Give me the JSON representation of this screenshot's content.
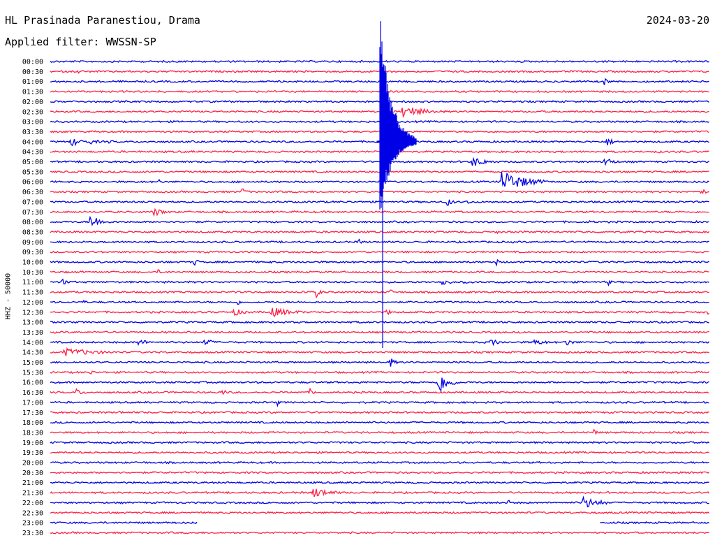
{
  "header": {
    "station": "HL Prasinada Paranestiou, Drama",
    "date": "2024-03-20",
    "filter": "Applied filter: WWSSN-SP",
    "channel": "HHZ - 50000"
  },
  "colors": {
    "trace_a": "#0000e6",
    "trace_b": "#ff1e46",
    "text": "#000000",
    "background": "#ffffff"
  },
  "chart_data": {
    "type": "line",
    "title": "HL Prasinada Paranestiou, Drama",
    "ylabel": "HHZ - 50000",
    "x_span_minutes": 30,
    "grid": false,
    "rows": [
      {
        "label": "00:00",
        "events": [
          {
            "t": 15.5,
            "amp": 3,
            "dur": 0.4
          }
        ]
      },
      {
        "label": "00:30",
        "events": [
          {
            "t": 1.2,
            "amp": 3,
            "dur": 1.2
          }
        ]
      },
      {
        "label": "01:00",
        "events": [
          {
            "t": 25.2,
            "amp": 6,
            "dur": 0.5
          }
        ]
      },
      {
        "label": "01:30",
        "events": []
      },
      {
        "label": "02:00",
        "events": []
      },
      {
        "label": "02:30",
        "events": [
          {
            "t": 16.0,
            "amp": 10,
            "dur": 2.2
          }
        ]
      },
      {
        "label": "03:00",
        "events": []
      },
      {
        "label": "03:30",
        "events": []
      },
      {
        "label": "04:00",
        "events": [
          {
            "t": 0.9,
            "amp": 7,
            "dur": 1.2
          },
          {
            "t": 1.8,
            "amp": 4,
            "dur": 1.0
          },
          {
            "t": 2.6,
            "amp": 3,
            "dur": 0.8
          },
          {
            "t": 25.3,
            "amp": 8,
            "dur": 0.6
          }
        ]
      },
      {
        "label": "04:30",
        "events": [
          {
            "t": 6.5,
            "amp": 3,
            "dur": 0.2
          },
          {
            "t": 27.7,
            "amp": 3,
            "dur": 0.2
          }
        ]
      },
      {
        "label": "05:00",
        "events": [
          {
            "t": 19.2,
            "amp": 8,
            "dur": 1.4
          },
          {
            "t": 25.2,
            "amp": 10,
            "dur": 0.7
          }
        ]
      },
      {
        "label": "05:30",
        "events": []
      },
      {
        "label": "06:00",
        "events": [
          {
            "t": 4.9,
            "amp": 5,
            "dur": 0.3
          },
          {
            "t": 20.5,
            "amp": 18,
            "dur": 2.2
          }
        ]
      },
      {
        "label": "06:30",
        "events": [
          {
            "t": 8.7,
            "amp": 7,
            "dur": 0.5
          },
          {
            "t": 29.6,
            "amp": 7,
            "dur": 0.4
          }
        ]
      },
      {
        "label": "07:00",
        "events": [
          {
            "t": 18.0,
            "amp": 10,
            "dur": 0.5
          },
          {
            "t": 18.9,
            "amp": 5,
            "dur": 0.5
          }
        ]
      },
      {
        "label": "07:30",
        "events": [
          {
            "t": 4.7,
            "amp": 7,
            "dur": 0.9
          }
        ]
      },
      {
        "label": "08:00",
        "events": [
          {
            "t": 1.8,
            "amp": 12,
            "dur": 1.0
          },
          {
            "t": 24.5,
            "amp": 3,
            "dur": 0.5
          }
        ]
      },
      {
        "label": "08:30",
        "events": [
          {
            "t": 20.3,
            "amp": 3,
            "dur": 0.6
          },
          {
            "t": 21.5,
            "amp": 5,
            "dur": 0.3
          }
        ]
      },
      {
        "label": "09:00",
        "events": [
          {
            "t": 14.0,
            "amp": 7,
            "dur": 0.3
          }
        ]
      },
      {
        "label": "09:30",
        "events": []
      },
      {
        "label": "10:00",
        "events": [
          {
            "t": 6.5,
            "amp": 7,
            "dur": 0.5
          },
          {
            "t": 9.9,
            "amp": 5,
            "dur": 0.3
          },
          {
            "t": 20.3,
            "amp": 5,
            "dur": 0.3
          }
        ]
      },
      {
        "label": "10:30",
        "events": [
          {
            "t": 4.9,
            "amp": 4,
            "dur": 0.3
          }
        ]
      },
      {
        "label": "11:00",
        "events": [
          {
            "t": 0.5,
            "amp": 6,
            "dur": 0.6
          },
          {
            "t": 17.8,
            "amp": 9,
            "dur": 0.6
          },
          {
            "t": 18.8,
            "amp": 4,
            "dur": 0.3
          },
          {
            "t": 25.4,
            "amp": 5,
            "dur": 0.3
          }
        ]
      },
      {
        "label": "11:30",
        "events": [
          {
            "t": 11.4,
            "amp": 5,
            "dur": 0.6
          },
          {
            "t": 12.1,
            "amp": 8,
            "dur": 0.4
          },
          {
            "t": 15.4,
            "amp": 6,
            "dur": 0.4
          }
        ]
      },
      {
        "label": "12:00",
        "events": [
          {
            "t": 1.5,
            "amp": 3,
            "dur": 0.5
          },
          {
            "t": 8.5,
            "amp": 6,
            "dur": 0.3
          }
        ]
      },
      {
        "label": "12:30",
        "events": [
          {
            "t": 8.3,
            "amp": 6,
            "dur": 1.2
          },
          {
            "t": 10.0,
            "amp": 8,
            "dur": 2.0
          },
          {
            "t": 15.3,
            "amp": 6,
            "dur": 0.4
          },
          {
            "t": 29.9,
            "amp": 5,
            "dur": 0.2
          }
        ]
      },
      {
        "label": "13:00",
        "events": []
      },
      {
        "label": "13:30",
        "events": [
          {
            "t": 1.4,
            "amp": 3,
            "dur": 0.2
          }
        ]
      },
      {
        "label": "14:00",
        "events": [
          {
            "t": 4.0,
            "amp": 5,
            "dur": 1.0
          },
          {
            "t": 7.0,
            "amp": 9,
            "dur": 0.6
          },
          {
            "t": 20.0,
            "amp": 6,
            "dur": 1.0
          },
          {
            "t": 22.0,
            "amp": 5,
            "dur": 1.3
          },
          {
            "t": 23.4,
            "amp": 7,
            "dur": 0.7
          }
        ]
      },
      {
        "label": "14:30",
        "events": [
          {
            "t": 0.6,
            "amp": 6,
            "dur": 3.6
          }
        ]
      },
      {
        "label": "15:00",
        "events": [
          {
            "t": 15.4,
            "amp": 10,
            "dur": 0.5
          }
        ]
      },
      {
        "label": "15:30",
        "events": [
          {
            "t": 1.8,
            "amp": 4,
            "dur": 0.6
          }
        ]
      },
      {
        "label": "16:00",
        "events": [
          {
            "t": 17.6,
            "amp": 20,
            "dur": 1.0
          }
        ]
      },
      {
        "label": "16:30",
        "events": [
          {
            "t": 1.1,
            "amp": 8,
            "dur": 0.6
          },
          {
            "t": 7.8,
            "amp": 5,
            "dur": 0.6
          },
          {
            "t": 11.8,
            "amp": 6,
            "dur": 0.4
          }
        ]
      },
      {
        "label": "17:00",
        "events": [
          {
            "t": 10.3,
            "amp": 8,
            "dur": 0.2
          }
        ]
      },
      {
        "label": "17:30",
        "events": [
          {
            "t": 3.1,
            "amp": 3,
            "dur": 0.6
          }
        ]
      },
      {
        "label": "18:00",
        "events": []
      },
      {
        "label": "18:30",
        "events": [
          {
            "t": 24.7,
            "amp": 6,
            "dur": 0.4
          }
        ]
      },
      {
        "label": "19:00",
        "events": []
      },
      {
        "label": "19:30",
        "events": []
      },
      {
        "label": "20:00",
        "events": [
          {
            "t": 4.2,
            "amp": 3,
            "dur": 0.4
          }
        ]
      },
      {
        "label": "20:30",
        "events": []
      },
      {
        "label": "21:00",
        "events": []
      },
      {
        "label": "21:30",
        "events": [
          {
            "t": 11.9,
            "amp": 9,
            "dur": 1.6
          }
        ]
      },
      {
        "label": "22:00",
        "events": [
          {
            "t": 20.8,
            "amp": 8,
            "dur": 0.2
          },
          {
            "t": 24.2,
            "amp": 10,
            "dur": 1.6
          }
        ]
      },
      {
        "label": "22:30",
        "events": []
      },
      {
        "label": "23:00",
        "events": [],
        "gap": [
          6.7,
          25.0
        ]
      },
      {
        "label": "23:30",
        "events": []
      }
    ],
    "main_event": {
      "row": "04:00",
      "t": 15.0
    }
  }
}
